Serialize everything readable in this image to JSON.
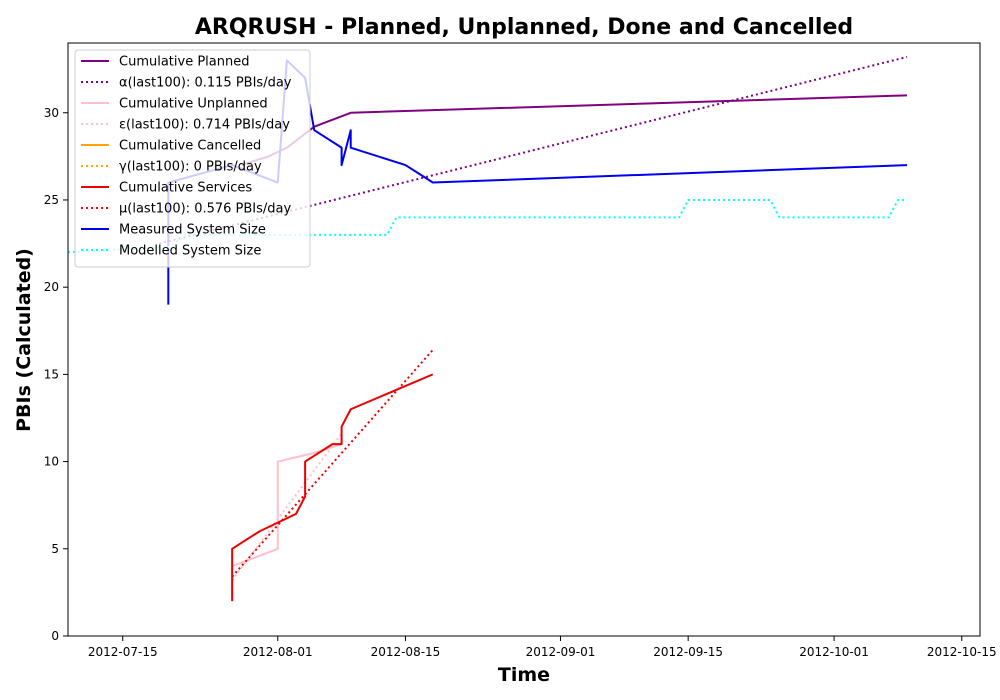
{
  "chart_data": {
    "type": "line",
    "title": "ARQRUSH - Planned, Unplanned, Done  and Cancelled",
    "xlabel": "Time",
    "ylabel": "PBIs (Calculated)",
    "x_is_date": true,
    "xlim": [
      "2012-07-09",
      "2012-10-17"
    ],
    "ylim": [
      0,
      34
    ],
    "x_ticks": [
      "2012-07-15",
      "2012-08-01",
      "2012-08-15",
      "2012-09-01",
      "2012-09-15",
      "2012-10-01",
      "2012-10-15"
    ],
    "y_ticks": [
      0,
      5,
      10,
      15,
      20,
      25,
      30
    ],
    "legend_position": "top-left",
    "grid": false,
    "series": [
      {
        "name": "Cumulative Planned",
        "color": "#800080",
        "style": "solid",
        "points": [
          [
            "2012-07-28",
            27
          ],
          [
            "2012-07-31",
            27.5
          ],
          [
            "2012-08-02",
            28
          ],
          [
            "2012-08-05",
            29.2
          ],
          [
            "2012-08-09",
            30
          ],
          [
            "2012-10-09",
            31
          ]
        ]
      },
      {
        "name": "α(last100): 0.115 PBIs/day",
        "color": "#800080",
        "style": "dotted",
        "points": [
          [
            "2012-07-19",
            22.5
          ],
          [
            "2012-10-09",
            33.2
          ]
        ]
      },
      {
        "name": "Cumulative Unplanned",
        "color": "#ffc0cb",
        "style": "solid",
        "points": [
          [
            "2012-07-27",
            2
          ],
          [
            "2012-07-27",
            4
          ],
          [
            "2012-08-01",
            5
          ],
          [
            "2012-08-01",
            10
          ],
          [
            "2012-08-05",
            10.5
          ],
          [
            "2012-08-08",
            11
          ],
          [
            "2012-08-08",
            11.5
          ]
        ]
      },
      {
        "name": "ε(last100): 0.714 PBIs/day",
        "color": "#ffc0cb",
        "style": "dotted",
        "points": [
          [
            "2012-07-27",
            3.2
          ],
          [
            "2012-08-08",
            11.6
          ]
        ]
      },
      {
        "name": "Cumulative Cancelled",
        "color": "#ffa500",
        "style": "solid",
        "points": []
      },
      {
        "name": "γ(last100): 0 PBIs/day",
        "color": "#ffa500",
        "style": "dotted",
        "points": []
      },
      {
        "name": "Cumulative Services",
        "color": "#ee0000",
        "style": "solid",
        "points": [
          [
            "2012-07-27",
            2
          ],
          [
            "2012-07-27",
            5
          ],
          [
            "2012-07-30",
            6
          ],
          [
            "2012-08-03",
            7
          ],
          [
            "2012-08-04",
            8
          ],
          [
            "2012-08-04",
            10
          ],
          [
            "2012-08-07",
            11
          ],
          [
            "2012-08-08",
            11
          ],
          [
            "2012-08-08",
            12
          ],
          [
            "2012-08-09",
            13
          ],
          [
            "2012-08-18",
            15
          ]
        ]
      },
      {
        "name": "μ(last100): 0.576 PBIs/day",
        "color": "#ee0000",
        "style": "dotted",
        "points": [
          [
            "2012-07-27",
            3.4
          ],
          [
            "2012-08-18",
            16.4
          ]
        ]
      },
      {
        "name": "Measured System Size",
        "color": "#0000ee",
        "style": "solid",
        "points": [
          [
            "2012-07-20",
            19
          ],
          [
            "2012-07-20",
            26
          ],
          [
            "2012-07-27",
            27
          ],
          [
            "2012-08-01",
            26
          ],
          [
            "2012-08-02",
            33
          ],
          [
            "2012-08-04",
            32
          ],
          [
            "2012-08-05",
            29
          ],
          [
            "2012-08-08",
            28
          ],
          [
            "2012-08-08",
            27
          ],
          [
            "2012-08-09",
            29
          ],
          [
            "2012-08-09",
            28
          ],
          [
            "2012-08-15",
            27
          ],
          [
            "2012-08-18",
            26
          ],
          [
            "2012-10-09",
            27
          ]
        ]
      },
      {
        "name": "Modelled System Size",
        "color": "#00ffff",
        "style": "dotted",
        "points": [
          [
            "2012-07-09",
            22
          ],
          [
            "2012-07-20",
            22.3
          ],
          [
            "2012-07-22",
            23
          ],
          [
            "2012-08-13",
            23
          ],
          [
            "2012-08-14",
            24
          ],
          [
            "2012-09-14",
            24
          ],
          [
            "2012-09-15",
            25
          ],
          [
            "2012-09-24",
            25
          ],
          [
            "2012-09-25",
            24
          ],
          [
            "2012-10-07",
            24
          ],
          [
            "2012-10-08",
            25
          ],
          [
            "2012-10-09",
            25
          ]
        ]
      }
    ]
  }
}
